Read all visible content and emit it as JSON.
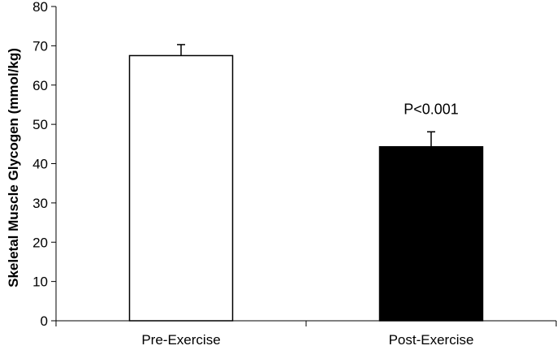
{
  "chart_data": {
    "type": "bar",
    "title": "",
    "xlabel": "",
    "ylabel": "Skeletal Muscle Glycogen (mmol/kg)",
    "ylim": [
      0,
      80
    ],
    "yticks": [
      0,
      10,
      20,
      30,
      40,
      50,
      60,
      70,
      80
    ],
    "categories": [
      "Pre-Exercise",
      "Post-Exercise"
    ],
    "values": [
      67.5,
      44.3
    ],
    "error_bars": [
      2.8,
      3.8
    ],
    "bar_colors": [
      "#ffffff",
      "#000000"
    ],
    "grid": false,
    "annotations": [
      {
        "text": "P<0.001",
        "category": "Post-Exercise"
      }
    ]
  }
}
